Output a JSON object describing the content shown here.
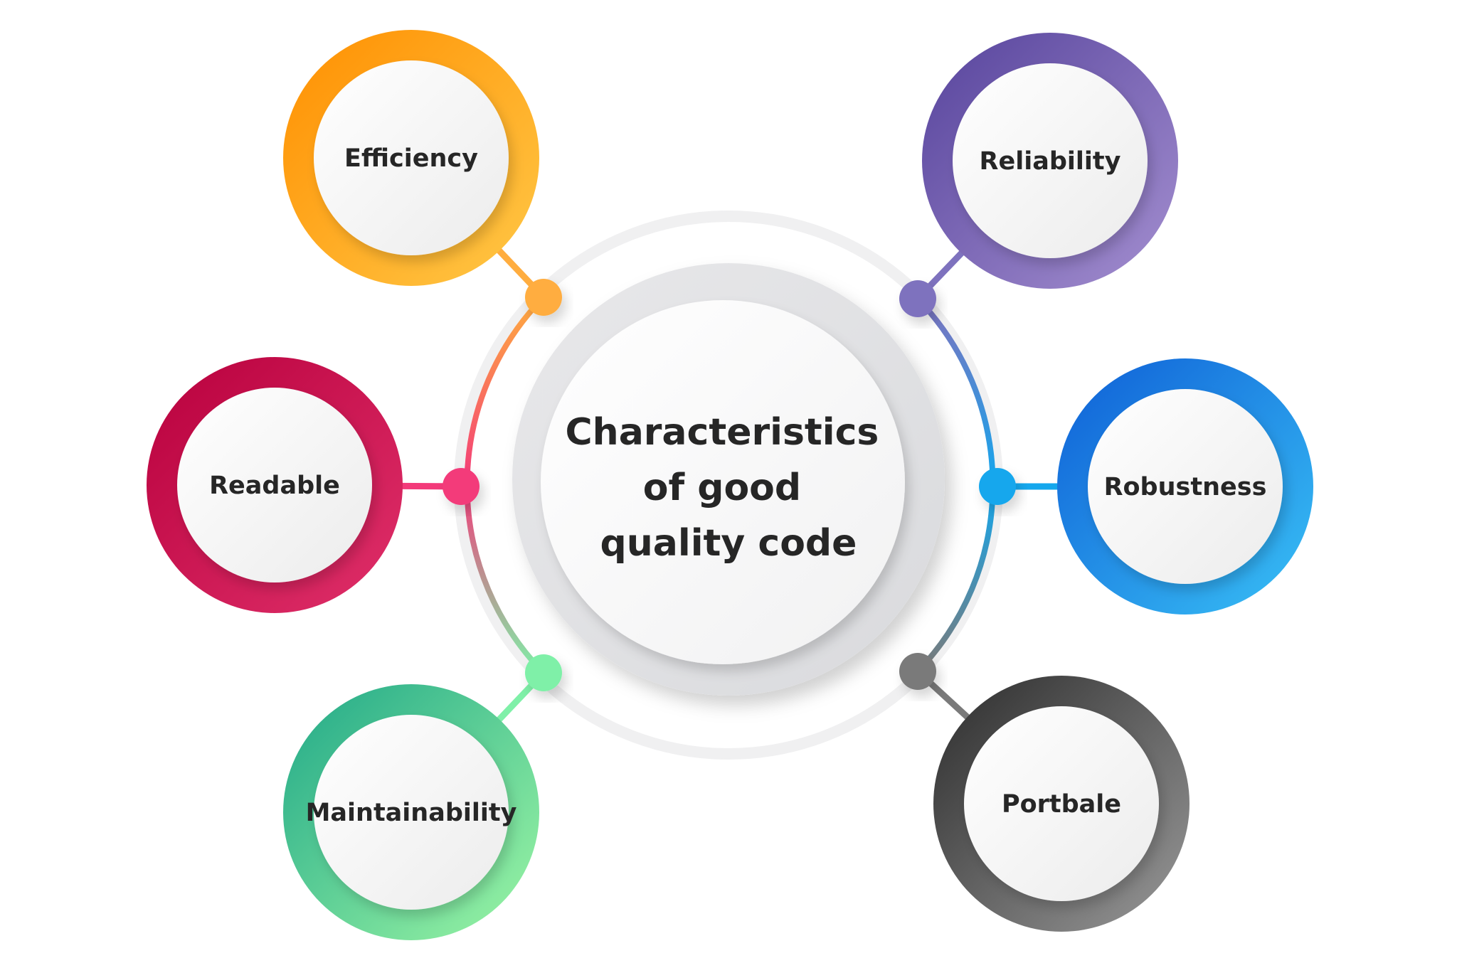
{
  "hub": {
    "lines": [
      "Characteristics",
      "of good",
      "quality code"
    ]
  },
  "nodes": [
    {
      "id": "efficiency",
      "label": "Efficiency",
      "colors": [
        "#ff8f00",
        "#ffc847"
      ],
      "joint": "#ffad3f"
    },
    {
      "id": "readable",
      "label": "Readable",
      "colors": [
        "#b8003d",
        "#e0306a"
      ],
      "joint": "#f33a7a"
    },
    {
      "id": "maintainability",
      "label": "Maintainability",
      "colors": [
        "#20a888",
        "#9ef7a5"
      ],
      "joint": "#7ff0a8"
    },
    {
      "id": "reliability",
      "label": "Reliability",
      "colors": [
        "#56439c",
        "#a48fd0"
      ],
      "joint": "#7e72be"
    },
    {
      "id": "robustness",
      "label": "Robustness",
      "colors": [
        "#0e5ed6",
        "#39c1f6"
      ],
      "joint": "#14a7ed"
    },
    {
      "id": "portbale",
      "label": "Portbale",
      "colors": [
        "#2b2b2b",
        "#9a9a9a"
      ],
      "joint": "#7a7a7a"
    }
  ]
}
